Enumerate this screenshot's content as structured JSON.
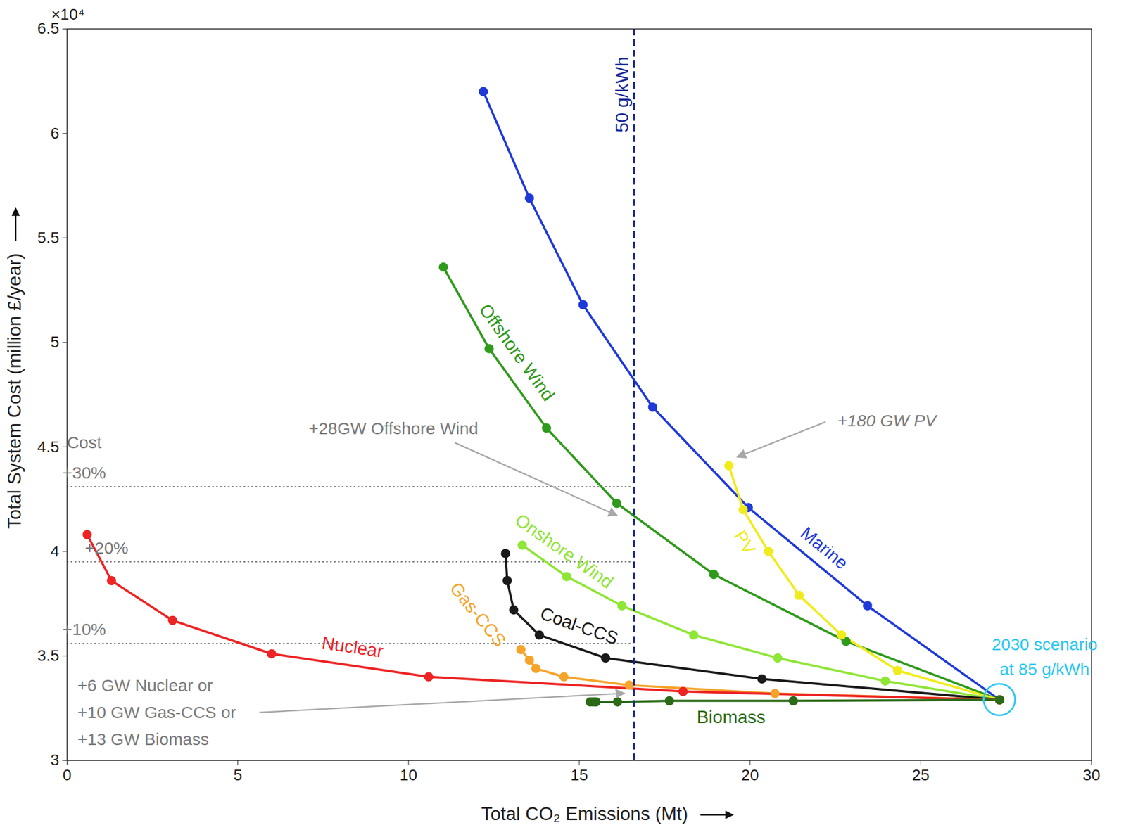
{
  "chart_data": {
    "type": "line",
    "x_label": "Total CO₂ Emissions (Mt)",
    "y_label": "Total System Cost (million £/year)",
    "y_unit_label": "×10⁴",
    "xlim": [
      0,
      30
    ],
    "xticks": [
      0,
      5,
      10,
      15,
      20,
      25,
      30
    ],
    "ylim": [
      3,
      6.5
    ],
    "yticks": [
      3,
      3.5,
      4,
      4.5,
      5,
      5.5,
      6,
      6.5
    ],
    "grid": false,
    "series": [
      {
        "name": "Marine",
        "color": "#1f3ad8",
        "marker": "circle",
        "line_style": "solid",
        "x": [
          12.19,
          13.54,
          15.11,
          17.15,
          19.95,
          23.44,
          27.31
        ],
        "values": [
          6.2,
          5.69,
          5.18,
          4.69,
          4.21,
          3.74,
          3.29
        ]
      },
      {
        "name": "Offshore Wind",
        "color": "#2f9a1c",
        "marker": "circle",
        "line_style": "solid",
        "x": [
          11.02,
          12.36,
          14.04,
          16.1,
          18.94,
          22.81,
          27.31
        ],
        "values": [
          5.36,
          4.97,
          4.59,
          4.23,
          3.89,
          3.57,
          3.29
        ]
      },
      {
        "name": "PV",
        "color": "#f0ec1c",
        "marker": "circle",
        "line_style": "solid",
        "x": [
          19.38,
          19.8,
          20.54,
          21.44,
          22.68,
          24.32,
          27.31
        ],
        "values": [
          4.41,
          4.2,
          4.0,
          3.79,
          3.6,
          3.43,
          3.29
        ]
      },
      {
        "name": "Onshore Wind",
        "color": "#8fe636",
        "marker": "circle",
        "line_style": "solid",
        "x": [
          13.33,
          14.63,
          16.25,
          18.35,
          20.81,
          23.96,
          27.31
        ],
        "values": [
          4.03,
          3.88,
          3.74,
          3.6,
          3.49,
          3.38,
          3.29
        ]
      },
      {
        "name": "Coal-CCS",
        "color": "#1a1a1a",
        "marker": "circle",
        "line_style": "solid",
        "x": [
          12.84,
          12.89,
          13.08,
          13.83,
          15.77,
          20.35,
          27.31
        ],
        "values": [
          3.99,
          3.86,
          3.72,
          3.6,
          3.49,
          3.39,
          3.29
        ]
      },
      {
        "name": "Gas-CCS",
        "color": "#f5a42a",
        "marker": "circle",
        "line_style": "solid",
        "x": [
          13.29,
          13.54,
          13.73,
          14.55,
          16.46,
          20.73,
          27.31
        ],
        "values": [
          3.53,
          3.48,
          3.44,
          3.4,
          3.36,
          3.32,
          3.29
        ]
      },
      {
        "name": "Nuclear",
        "color": "#ee2424",
        "marker": "circle",
        "line_style": "solid",
        "x": [
          0.59,
          1.3,
          3.09,
          5.99,
          10.59,
          18.04,
          27.31
        ],
        "values": [
          4.08,
          3.86,
          3.67,
          3.51,
          3.4,
          3.33,
          3.29
        ]
      },
      {
        "name": "Biomass",
        "color": "#2b6a17",
        "marker": "circle",
        "line_style": "solid",
        "x": [
          15.32,
          15.41,
          15.49,
          16.12,
          17.64,
          21.27,
          27.31
        ],
        "values": [
          3.28,
          3.28,
          3.28,
          3.28,
          3.285,
          3.285,
          3.29
        ]
      }
    ],
    "reference_lines": [
      {
        "axis": "x",
        "value": 16.6,
        "label": "50 g/kWh",
        "color": "#1a2a9a",
        "line_style": "dashed"
      },
      {
        "axis": "y",
        "value": 4.31,
        "label": [
          "Cost",
          "+30%"
        ],
        "color": "#555555",
        "line_style": "dotted"
      },
      {
        "axis": "y",
        "value": 3.95,
        "label": "+20%",
        "color": "#555555",
        "line_style": "dotted"
      },
      {
        "axis": "y",
        "value": 3.56,
        "label": "+10%",
        "color": "#555555",
        "line_style": "dotted"
      }
    ],
    "annotations": [
      {
        "text": [
          "+28GW Offshore Wind"
        ],
        "x": 16.12,
        "y": 4.17
      },
      {
        "text": [
          "+180 GW PV"
        ],
        "x": 19.63,
        "y": 4.45
      },
      {
        "text": [
          "+6 GW Nuclear or",
          "+10 GW Gas-CCS or",
          "+13 GW Biomass"
        ],
        "x": 16.33,
        "y": 3.32
      },
      {
        "text": [
          "2030 scenario",
          "at 85 g/kWh"
        ],
        "x": 27.31,
        "y": 3.29,
        "color": "#2ec8f0",
        "marker": "circle"
      }
    ]
  }
}
